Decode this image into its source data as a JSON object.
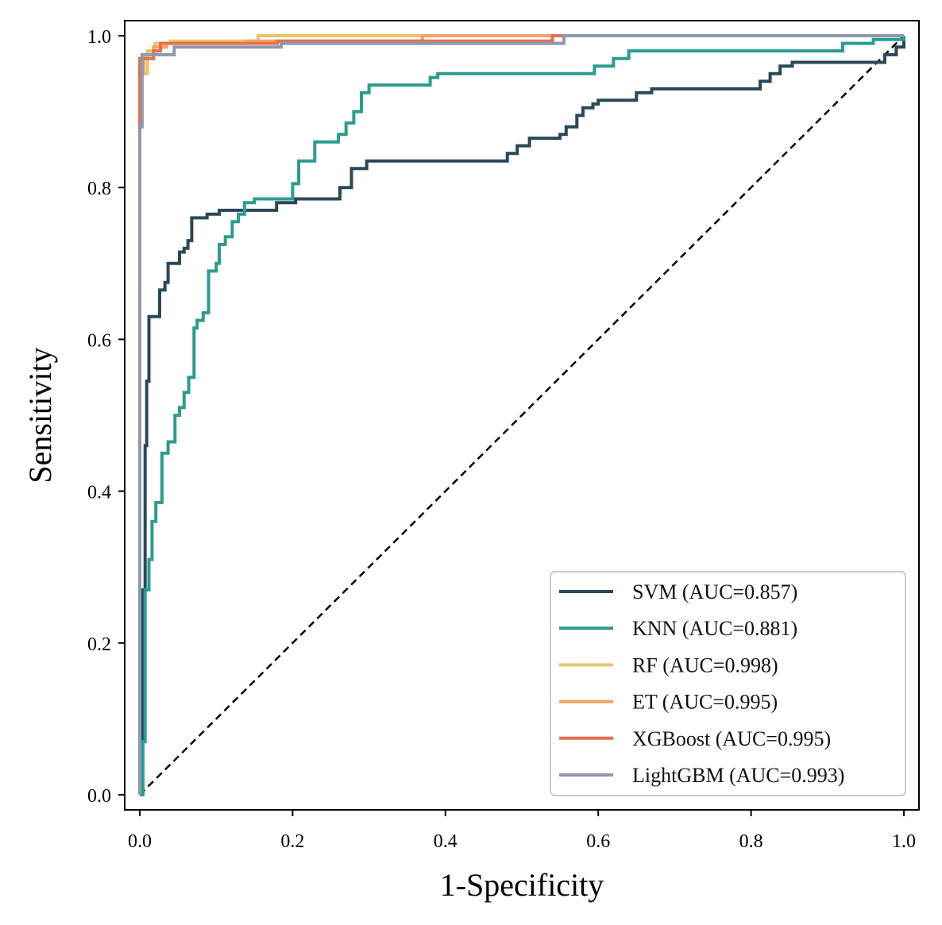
{
  "chart_data": {
    "type": "line",
    "title": "",
    "xlabel": "1-Specificity",
    "ylabel": "Sensitivity",
    "xlim": [
      -0.02,
      1.02
    ],
    "ylim": [
      -0.02,
      1.02
    ],
    "xticks": [
      "0.0",
      "0.2",
      "0.4",
      "0.6",
      "0.8",
      "1.0"
    ],
    "yticks": [
      "0.0",
      "0.2",
      "0.4",
      "0.6",
      "0.8",
      "1.0"
    ],
    "xtick_values": [
      0,
      0.2,
      0.4,
      0.6,
      0.8,
      1.0
    ],
    "ytick_values": [
      0,
      0.2,
      0.4,
      0.6,
      0.8,
      1.0
    ],
    "grid": false,
    "legend_position": "lower-right",
    "reference_line": {
      "name": "chance",
      "x": [
        0,
        1
      ],
      "y": [
        0,
        1
      ],
      "style": "dashed",
      "color": "#000000"
    },
    "series": [
      {
        "name": "SVM (AUC=0.857)",
        "color": "#2a4858",
        "x": [
          0,
          0.004,
          0.004,
          0.007,
          0.007,
          0.009,
          0.009,
          0.012,
          0.012,
          0.026,
          0.026,
          0.033,
          0.033,
          0.037,
          0.037,
          0.052,
          0.052,
          0.058,
          0.058,
          0.063,
          0.063,
          0.068,
          0.068,
          0.088,
          0.088,
          0.104,
          0.104,
          0.179,
          0.179,
          0.204,
          0.204,
          0.262,
          0.262,
          0.277,
          0.277,
          0.297,
          0.297,
          0.317,
          0.317,
          0.481,
          0.481,
          0.494,
          0.494,
          0.51,
          0.51,
          0.55,
          0.55,
          0.558,
          0.558,
          0.572,
          0.572,
          0.58,
          0.58,
          0.593,
          0.593,
          0.6,
          0.6,
          0.65,
          0.65,
          0.67,
          0.67,
          0.812,
          0.812,
          0.825,
          0.825,
          0.838,
          0.838,
          0.854,
          0.854,
          0.875,
          0.875,
          0.975,
          0.975,
          0.99,
          0.99,
          1.0,
          1.0
        ],
        "y": [
          0,
          0,
          0.27,
          0.27,
          0.46,
          0.46,
          0.545,
          0.545,
          0.63,
          0.63,
          0.665,
          0.665,
          0.675,
          0.675,
          0.7,
          0.7,
          0.715,
          0.715,
          0.72,
          0.72,
          0.73,
          0.73,
          0.76,
          0.76,
          0.765,
          0.765,
          0.77,
          0.77,
          0.78,
          0.78,
          0.785,
          0.785,
          0.8,
          0.8,
          0.825,
          0.825,
          0.835,
          0.835,
          0.835,
          0.835,
          0.845,
          0.845,
          0.855,
          0.855,
          0.865,
          0.865,
          0.87,
          0.87,
          0.88,
          0.88,
          0.895,
          0.895,
          0.905,
          0.905,
          0.91,
          0.91,
          0.915,
          0.915,
          0.925,
          0.925,
          0.93,
          0.93,
          0.94,
          0.94,
          0.95,
          0.95,
          0.96,
          0.96,
          0.965,
          0.965,
          0.965,
          0.965,
          0.975,
          0.975,
          0.985,
          0.985,
          1.0
        ]
      },
      {
        "name": "KNN (AUC=0.881)",
        "color": "#2a9d8f",
        "x": [
          0,
          0.004,
          0.004,
          0.007,
          0.007,
          0.012,
          0.012,
          0.016,
          0.016,
          0.021,
          0.021,
          0.029,
          0.029,
          0.037,
          0.037,
          0.046,
          0.046,
          0.052,
          0.052,
          0.058,
          0.058,
          0.064,
          0.064,
          0.071,
          0.071,
          0.075,
          0.075,
          0.083,
          0.083,
          0.09,
          0.09,
          0.1,
          0.1,
          0.104,
          0.104,
          0.112,
          0.112,
          0.121,
          0.121,
          0.129,
          0.129,
          0.137,
          0.137,
          0.15,
          0.15,
          0.2,
          0.2,
          0.208,
          0.208,
          0.229,
          0.229,
          0.26,
          0.26,
          0.27,
          0.27,
          0.28,
          0.28,
          0.29,
          0.29,
          0.3,
          0.3,
          0.38,
          0.38,
          0.39,
          0.39,
          0.41,
          0.41,
          0.595,
          0.595,
          0.62,
          0.62,
          0.64,
          0.64,
          0.92,
          0.92,
          0.96,
          0.96,
          1.0,
          1.0
        ],
        "y": [
          0,
          0,
          0.07,
          0.07,
          0.27,
          0.27,
          0.31,
          0.31,
          0.36,
          0.36,
          0.385,
          0.385,
          0.45,
          0.45,
          0.465,
          0.465,
          0.5,
          0.5,
          0.51,
          0.51,
          0.53,
          0.53,
          0.55,
          0.55,
          0.615,
          0.615,
          0.625,
          0.625,
          0.635,
          0.635,
          0.69,
          0.69,
          0.7,
          0.7,
          0.725,
          0.725,
          0.735,
          0.735,
          0.755,
          0.755,
          0.765,
          0.765,
          0.78,
          0.78,
          0.785,
          0.785,
          0.805,
          0.805,
          0.835,
          0.835,
          0.86,
          0.86,
          0.87,
          0.87,
          0.885,
          0.885,
          0.9,
          0.9,
          0.925,
          0.925,
          0.935,
          0.935,
          0.945,
          0.945,
          0.95,
          0.95,
          0.95,
          0.95,
          0.96,
          0.96,
          0.97,
          0.97,
          0.98,
          0.98,
          0.99,
          0.99,
          0.995,
          0.995,
          1.0
        ]
      },
      {
        "name": "RF (AUC=0.998)",
        "color": "#e9c46a",
        "x": [
          0,
          0,
          0.01,
          0.01,
          0.02,
          0.02,
          0.04,
          0.04,
          0.155,
          0.155,
          1.0
        ],
        "y": [
          0,
          0.95,
          0.95,
          0.98,
          0.98,
          0.99,
          0.99,
          0.993,
          0.993,
          1.0,
          1.0
        ]
      },
      {
        "name": "ET (AUC=0.995)",
        "color": "#f4a261",
        "x": [
          0,
          0,
          0.005,
          0.005,
          0.018,
          0.018,
          0.035,
          0.035,
          0.14,
          0.14,
          0.37,
          0.37,
          0.55,
          0.55,
          1.0
        ],
        "y": [
          0,
          0.95,
          0.95,
          0.975,
          0.975,
          0.985,
          0.985,
          0.99,
          0.99,
          0.993,
          0.993,
          1.0,
          1.0,
          1.0,
          1.0
        ]
      },
      {
        "name": "XGBoost (AUC=0.995)",
        "color": "#e76f51",
        "x": [
          0,
          0,
          0.018,
          0.018,
          0.027,
          0.027,
          0.18,
          0.18,
          0.54,
          0.54,
          1.0
        ],
        "y": [
          0,
          0.97,
          0.97,
          0.98,
          0.98,
          0.99,
          0.99,
          0.993,
          0.993,
          1.0,
          1.0
        ]
      },
      {
        "name": "LightGBM (AUC=0.993)",
        "color": "#8d99ae",
        "x": [
          0,
          0,
          0.003,
          0.003,
          0.045,
          0.045,
          0.185,
          0.185,
          0.555,
          0.555,
          1.0
        ],
        "y": [
          0,
          0.88,
          0.88,
          0.975,
          0.975,
          0.985,
          0.985,
          0.99,
          0.99,
          1.0,
          1.0
        ]
      }
    ]
  }
}
